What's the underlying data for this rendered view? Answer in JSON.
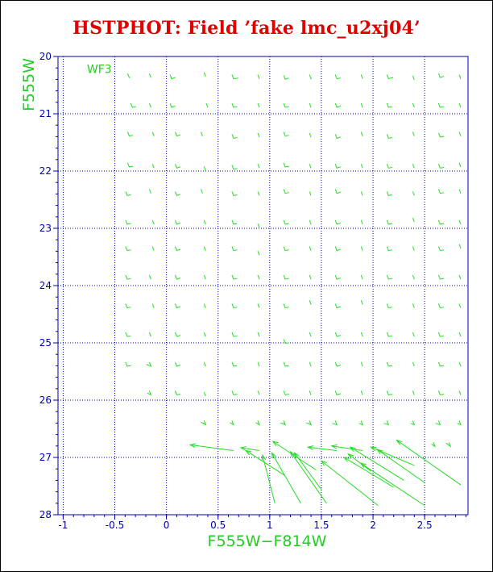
{
  "chart_data": {
    "type": "scatter",
    "title": "HSTPHOT: Field ’fake lmc_u2xj04’",
    "xlabel": "F555W−F814W",
    "ylabel": "F555W",
    "annotation": "WF3",
    "xlim": [
      -1.05,
      2.92
    ],
    "ylim": [
      28,
      20
    ],
    "x_ticks": [
      "-1",
      "-0.5",
      "0",
      "0.5",
      "1",
      "1.5",
      "2",
      "2.5"
    ],
    "x_tick_values": [
      -1,
      -0.5,
      0,
      0.5,
      1,
      1.5,
      2,
      2.5
    ],
    "y_ticks": [
      "20",
      "21",
      "22",
      "23",
      "24",
      "25",
      "26",
      "27",
      "28"
    ],
    "y_tick_values": [
      20,
      21,
      22,
      23,
      24,
      25,
      26,
      27,
      28
    ],
    "grid": true,
    "colors": {
      "title": "#e00000",
      "labels": "#22cc22",
      "axes": "#0000aa",
      "grid": "#0000aa",
      "points": "#22dd22"
    },
    "points": [
      {
        "x": -0.36,
        "y": 20.34,
        "dx": -0.01,
        "dy": 0.04
      },
      {
        "x": -0.15,
        "y": 20.34,
        "dx": -0.02,
        "dy": 0.03
      },
      {
        "x": 0.05,
        "y": 20.36,
        "dx": 0.02,
        "dy": 0.02
      },
      {
        "x": 0.38,
        "y": 20.32,
        "dx": -0.02,
        "dy": 0.03
      },
      {
        "x": 0.65,
        "y": 20.36,
        "dx": 0.03,
        "dy": 0.03
      },
      {
        "x": 0.9,
        "y": 20.36,
        "dx": -0.02,
        "dy": 0.03
      },
      {
        "x": 1.15,
        "y": 20.37,
        "dx": 0.02,
        "dy": 0.02
      },
      {
        "x": 1.4,
        "y": 20.36,
        "dx": -0.01,
        "dy": 0.03
      },
      {
        "x": 1.65,
        "y": 20.36,
        "dx": 0.02,
        "dy": 0.03
      },
      {
        "x": 1.9,
        "y": 20.36,
        "dx": -0.02,
        "dy": 0.02
      },
      {
        "x": 2.15,
        "y": 20.36,
        "dx": 0.03,
        "dy": 0.02
      },
      {
        "x": 2.4,
        "y": 20.38,
        "dx": -0.02,
        "dy": 0.03
      },
      {
        "x": 2.65,
        "y": 20.34,
        "dx": 0.02,
        "dy": 0.02
      },
      {
        "x": 2.85,
        "y": 20.36,
        "dx": -0.02,
        "dy": 0.03
      },
      {
        "x": -0.33,
        "y": 20.86,
        "dx": 0.02,
        "dy": 0.03
      },
      {
        "x": -0.15,
        "y": 20.86,
        "dx": -0.02,
        "dy": 0.03
      },
      {
        "x": 0.05,
        "y": 20.86,
        "dx": 0.02,
        "dy": 0.02
      },
      {
        "x": 0.4,
        "y": 20.86,
        "dx": -0.02,
        "dy": 0.03
      },
      {
        "x": 0.65,
        "y": 20.86,
        "dx": 0.02,
        "dy": 0.03
      },
      {
        "x": 0.9,
        "y": 20.86,
        "dx": -0.02,
        "dy": 0.02
      },
      {
        "x": 1.15,
        "y": 20.86,
        "dx": 0.02,
        "dy": 0.03
      },
      {
        "x": 1.4,
        "y": 20.86,
        "dx": -0.02,
        "dy": 0.03
      },
      {
        "x": 1.65,
        "y": 20.86,
        "dx": 0.02,
        "dy": 0.02
      },
      {
        "x": 1.9,
        "y": 20.86,
        "dx": -0.02,
        "dy": 0.03
      },
      {
        "x": 2.15,
        "y": 20.86,
        "dx": 0.02,
        "dy": 0.03
      },
      {
        "x": 2.4,
        "y": 20.86,
        "dx": -0.02,
        "dy": 0.02
      },
      {
        "x": 2.65,
        "y": 20.86,
        "dx": 0.02,
        "dy": 0.03
      },
      {
        "x": 2.85,
        "y": 20.86,
        "dx": -0.02,
        "dy": 0.03
      },
      {
        "x": -0.36,
        "y": 21.36,
        "dx": 0.02,
        "dy": 0.03
      },
      {
        "x": -0.12,
        "y": 21.36,
        "dx": -0.02,
        "dy": 0.03
      },
      {
        "x": 0.1,
        "y": 21.36,
        "dx": 0.02,
        "dy": 0.02
      },
      {
        "x": 0.35,
        "y": 21.36,
        "dx": -0.02,
        "dy": 0.03
      },
      {
        "x": 0.65,
        "y": 21.4,
        "dx": 0.02,
        "dy": 0.03
      },
      {
        "x": 0.9,
        "y": 21.38,
        "dx": -0.02,
        "dy": 0.02
      },
      {
        "x": 1.15,
        "y": 21.36,
        "dx": 0.02,
        "dy": 0.03
      },
      {
        "x": 1.4,
        "y": 21.38,
        "dx": -0.02,
        "dy": 0.03
      },
      {
        "x": 1.65,
        "y": 21.4,
        "dx": 0.02,
        "dy": 0.02
      },
      {
        "x": 1.9,
        "y": 21.36,
        "dx": -0.02,
        "dy": 0.03
      },
      {
        "x": 2.15,
        "y": 21.4,
        "dx": 0.02,
        "dy": 0.03
      },
      {
        "x": 2.4,
        "y": 21.36,
        "dx": -0.02,
        "dy": 0.02
      },
      {
        "x": 2.65,
        "y": 21.38,
        "dx": 0.02,
        "dy": 0.03
      },
      {
        "x": 2.85,
        "y": 21.36,
        "dx": -0.02,
        "dy": 0.03
      },
      {
        "x": -0.36,
        "y": 21.9,
        "dx": 0.02,
        "dy": 0.03
      },
      {
        "x": -0.12,
        "y": 21.92,
        "dx": -0.02,
        "dy": 0.03
      },
      {
        "x": 0.1,
        "y": 21.92,
        "dx": 0.02,
        "dy": 0.02
      },
      {
        "x": 0.38,
        "y": 21.96,
        "dx": -0.02,
        "dy": 0.03
      },
      {
        "x": 0.65,
        "y": 21.94,
        "dx": 0.02,
        "dy": 0.03
      },
      {
        "x": 0.9,
        "y": 21.92,
        "dx": -0.02,
        "dy": 0.02
      },
      {
        "x": 1.15,
        "y": 21.9,
        "dx": 0.02,
        "dy": 0.03
      },
      {
        "x": 1.4,
        "y": 21.92,
        "dx": -0.02,
        "dy": 0.03
      },
      {
        "x": 1.65,
        "y": 21.92,
        "dx": 0.02,
        "dy": 0.02
      },
      {
        "x": 1.9,
        "y": 21.92,
        "dx": -0.02,
        "dy": 0.03
      },
      {
        "x": 2.15,
        "y": 21.92,
        "dx": 0.02,
        "dy": 0.03
      },
      {
        "x": 2.4,
        "y": 21.92,
        "dx": -0.02,
        "dy": 0.02
      },
      {
        "x": 2.65,
        "y": 21.92,
        "dx": 0.02,
        "dy": 0.03
      },
      {
        "x": 2.85,
        "y": 21.9,
        "dx": -0.02,
        "dy": 0.03
      },
      {
        "x": -0.38,
        "y": 22.4,
        "dx": 0.02,
        "dy": 0.03
      },
      {
        "x": -0.15,
        "y": 22.36,
        "dx": -0.02,
        "dy": 0.03
      },
      {
        "x": 0.1,
        "y": 22.4,
        "dx": 0.02,
        "dy": 0.02
      },
      {
        "x": 0.35,
        "y": 22.36,
        "dx": -0.02,
        "dy": 0.03
      },
      {
        "x": 0.65,
        "y": 22.4,
        "dx": 0.02,
        "dy": 0.03
      },
      {
        "x": 0.9,
        "y": 22.4,
        "dx": -0.02,
        "dy": 0.02
      },
      {
        "x": 1.15,
        "y": 22.36,
        "dx": 0.02,
        "dy": 0.03
      },
      {
        "x": 1.4,
        "y": 22.4,
        "dx": -0.02,
        "dy": 0.03
      },
      {
        "x": 1.65,
        "y": 22.36,
        "dx": 0.02,
        "dy": 0.02
      },
      {
        "x": 1.9,
        "y": 22.4,
        "dx": -0.02,
        "dy": 0.03
      },
      {
        "x": 2.15,
        "y": 22.4,
        "dx": 0.02,
        "dy": 0.03
      },
      {
        "x": 2.4,
        "y": 22.4,
        "dx": -0.02,
        "dy": 0.02
      },
      {
        "x": 2.65,
        "y": 22.36,
        "dx": 0.02,
        "dy": 0.03
      },
      {
        "x": 2.85,
        "y": 22.36,
        "dx": -0.02,
        "dy": 0.03
      },
      {
        "x": -0.38,
        "y": 22.9,
        "dx": 0.02,
        "dy": 0.03
      },
      {
        "x": -0.12,
        "y": 22.9,
        "dx": -0.02,
        "dy": 0.03
      },
      {
        "x": 0.1,
        "y": 22.9,
        "dx": 0.02,
        "dy": 0.02
      },
      {
        "x": 0.38,
        "y": 22.9,
        "dx": -0.02,
        "dy": 0.03
      },
      {
        "x": 0.65,
        "y": 22.9,
        "dx": 0.02,
        "dy": 0.03
      },
      {
        "x": 0.9,
        "y": 22.96,
        "dx": -0.02,
        "dy": 0.02
      },
      {
        "x": 1.15,
        "y": 22.9,
        "dx": 0.02,
        "dy": 0.03
      },
      {
        "x": 1.4,
        "y": 22.9,
        "dx": -0.02,
        "dy": 0.03
      },
      {
        "x": 1.65,
        "y": 22.9,
        "dx": 0.02,
        "dy": 0.02
      },
      {
        "x": 1.9,
        "y": 22.9,
        "dx": -0.02,
        "dy": 0.03
      },
      {
        "x": 2.15,
        "y": 22.9,
        "dx": 0.02,
        "dy": 0.03
      },
      {
        "x": 2.4,
        "y": 22.86,
        "dx": -0.02,
        "dy": 0.02
      },
      {
        "x": 2.65,
        "y": 22.9,
        "dx": 0.02,
        "dy": 0.03
      },
      {
        "x": 2.85,
        "y": 22.9,
        "dx": -0.02,
        "dy": 0.03
      },
      {
        "x": -0.38,
        "y": 23.36,
        "dx": 0.02,
        "dy": 0.03
      },
      {
        "x": -0.12,
        "y": 23.36,
        "dx": -0.02,
        "dy": 0.03
      },
      {
        "x": 0.1,
        "y": 23.36,
        "dx": 0.02,
        "dy": 0.02
      },
      {
        "x": 0.38,
        "y": 23.36,
        "dx": -0.02,
        "dy": 0.03
      },
      {
        "x": 0.65,
        "y": 23.36,
        "dx": 0.02,
        "dy": 0.03
      },
      {
        "x": 0.9,
        "y": 23.44,
        "dx": -0.02,
        "dy": 0.02
      },
      {
        "x": 1.15,
        "y": 23.36,
        "dx": 0.02,
        "dy": 0.03
      },
      {
        "x": 1.4,
        "y": 23.36,
        "dx": -0.02,
        "dy": 0.03
      },
      {
        "x": 1.65,
        "y": 23.36,
        "dx": 0.02,
        "dy": 0.02
      },
      {
        "x": 1.9,
        "y": 23.36,
        "dx": -0.02,
        "dy": 0.03
      },
      {
        "x": 2.15,
        "y": 23.36,
        "dx": 0.02,
        "dy": 0.03
      },
      {
        "x": 2.4,
        "y": 23.36,
        "dx": -0.02,
        "dy": 0.02
      },
      {
        "x": 2.65,
        "y": 23.36,
        "dx": 0.02,
        "dy": 0.03
      },
      {
        "x": 2.85,
        "y": 23.32,
        "dx": -0.02,
        "dy": 0.03
      },
      {
        "x": -0.38,
        "y": 23.86,
        "dx": 0.02,
        "dy": 0.03
      },
      {
        "x": -0.15,
        "y": 23.86,
        "dx": -0.02,
        "dy": 0.03
      },
      {
        "x": 0.1,
        "y": 23.86,
        "dx": 0.02,
        "dy": 0.02
      },
      {
        "x": 0.38,
        "y": 23.86,
        "dx": -0.02,
        "dy": 0.03
      },
      {
        "x": 0.65,
        "y": 23.86,
        "dx": 0.02,
        "dy": 0.03
      },
      {
        "x": 0.9,
        "y": 23.86,
        "dx": -0.02,
        "dy": 0.02
      },
      {
        "x": 1.15,
        "y": 23.86,
        "dx": 0.02,
        "dy": 0.03
      },
      {
        "x": 1.4,
        "y": 23.86,
        "dx": -0.02,
        "dy": 0.03
      },
      {
        "x": 1.65,
        "y": 23.86,
        "dx": 0.02,
        "dy": 0.02
      },
      {
        "x": 1.9,
        "y": 23.86,
        "dx": -0.02,
        "dy": 0.03
      },
      {
        "x": 2.15,
        "y": 23.86,
        "dx": 0.02,
        "dy": 0.03
      },
      {
        "x": 2.4,
        "y": 23.86,
        "dx": -0.02,
        "dy": 0.02
      },
      {
        "x": 2.65,
        "y": 23.86,
        "dx": 0.02,
        "dy": 0.03
      },
      {
        "x": 2.85,
        "y": 23.86,
        "dx": -0.02,
        "dy": 0.03
      },
      {
        "x": -0.38,
        "y": 24.36,
        "dx": 0.02,
        "dy": 0.03
      },
      {
        "x": -0.12,
        "y": 24.36,
        "dx": -0.02,
        "dy": 0.03
      },
      {
        "x": 0.1,
        "y": 24.36,
        "dx": 0.02,
        "dy": 0.02
      },
      {
        "x": 0.38,
        "y": 24.36,
        "dx": -0.02,
        "dy": 0.03
      },
      {
        "x": 0.65,
        "y": 24.36,
        "dx": 0.02,
        "dy": 0.03
      },
      {
        "x": 0.9,
        "y": 24.36,
        "dx": -0.02,
        "dy": 0.02
      },
      {
        "x": 1.15,
        "y": 24.36,
        "dx": 0.02,
        "dy": 0.03
      },
      {
        "x": 1.4,
        "y": 24.3,
        "dx": -0.02,
        "dy": 0.03
      },
      {
        "x": 1.65,
        "y": 24.36,
        "dx": 0.02,
        "dy": 0.02
      },
      {
        "x": 1.9,
        "y": 24.3,
        "dx": -0.02,
        "dy": 0.03
      },
      {
        "x": 2.15,
        "y": 24.36,
        "dx": 0.02,
        "dy": 0.03
      },
      {
        "x": 2.4,
        "y": 24.36,
        "dx": -0.02,
        "dy": 0.02
      },
      {
        "x": 2.65,
        "y": 24.36,
        "dx": 0.02,
        "dy": 0.03
      },
      {
        "x": 2.85,
        "y": 24.36,
        "dx": -0.02,
        "dy": 0.03
      },
      {
        "x": -0.38,
        "y": 24.86,
        "dx": 0.02,
        "dy": 0.03
      },
      {
        "x": -0.15,
        "y": 24.86,
        "dx": -0.02,
        "dy": 0.03
      },
      {
        "x": 0.1,
        "y": 24.86,
        "dx": 0.02,
        "dy": 0.02
      },
      {
        "x": 0.38,
        "y": 24.86,
        "dx": -0.02,
        "dy": 0.03
      },
      {
        "x": 0.65,
        "y": 24.86,
        "dx": 0.02,
        "dy": 0.03
      },
      {
        "x": 0.9,
        "y": 24.86,
        "dx": -0.02,
        "dy": 0.02
      },
      {
        "x": 1.15,
        "y": 24.98,
        "dx": 0.02,
        "dy": 0.03
      },
      {
        "x": 1.4,
        "y": 24.86,
        "dx": -0.02,
        "dy": 0.03
      },
      {
        "x": 1.65,
        "y": 24.86,
        "dx": 0.02,
        "dy": 0.02
      },
      {
        "x": 1.9,
        "y": 24.86,
        "dx": -0.02,
        "dy": 0.03
      },
      {
        "x": 2.15,
        "y": 24.86,
        "dx": 0.02,
        "dy": 0.03
      },
      {
        "x": 2.4,
        "y": 24.86,
        "dx": -0.02,
        "dy": 0.02
      },
      {
        "x": 2.65,
        "y": 24.86,
        "dx": 0.02,
        "dy": 0.03
      },
      {
        "x": 2.85,
        "y": 24.86,
        "dx": -0.02,
        "dy": 0.03
      },
      {
        "x": -0.38,
        "y": 25.38,
        "dx": 0.02,
        "dy": 0.03
      },
      {
        "x": -0.15,
        "y": 25.38,
        "dx": -0.06,
        "dy": 0.01
      },
      {
        "x": 0.1,
        "y": 25.38,
        "dx": 0.02,
        "dy": 0.02
      },
      {
        "x": 0.38,
        "y": 25.38,
        "dx": -0.02,
        "dy": 0.03
      },
      {
        "x": 0.65,
        "y": 25.38,
        "dx": 0.02,
        "dy": 0.03
      },
      {
        "x": 0.9,
        "y": 25.38,
        "dx": -0.02,
        "dy": 0.02
      },
      {
        "x": 1.15,
        "y": 25.38,
        "dx": 0.02,
        "dy": 0.03
      },
      {
        "x": 1.4,
        "y": 25.38,
        "dx": -0.02,
        "dy": 0.03
      },
      {
        "x": 1.65,
        "y": 25.38,
        "dx": 0.02,
        "dy": 0.02
      },
      {
        "x": 1.9,
        "y": 25.38,
        "dx": -0.02,
        "dy": 0.03
      },
      {
        "x": 2.15,
        "y": 25.38,
        "dx": 0.02,
        "dy": 0.03
      },
      {
        "x": 2.4,
        "y": 25.38,
        "dx": -0.02,
        "dy": 0.02
      },
      {
        "x": 2.65,
        "y": 25.38,
        "dx": 0.02,
        "dy": 0.03
      },
      {
        "x": 2.85,
        "y": 25.38,
        "dx": -0.02,
        "dy": 0.03
      },
      {
        "x": -0.15,
        "y": 25.88,
        "dx": -0.05,
        "dy": 0.01
      },
      {
        "x": 0.1,
        "y": 25.88,
        "dx": 0.02,
        "dy": 0.03
      },
      {
        "x": 0.38,
        "y": 25.9,
        "dx": -0.02,
        "dy": 0.03
      },
      {
        "x": 0.65,
        "y": 25.88,
        "dx": 0.02,
        "dy": 0.03
      },
      {
        "x": 0.9,
        "y": 25.88,
        "dx": -0.02,
        "dy": 0.02
      },
      {
        "x": 1.15,
        "y": 25.88,
        "dx": 0.02,
        "dy": 0.03
      },
      {
        "x": 1.4,
        "y": 25.88,
        "dx": -0.02,
        "dy": 0.03
      },
      {
        "x": 1.65,
        "y": 25.88,
        "dx": 0.02,
        "dy": 0.02
      },
      {
        "x": 1.9,
        "y": 25.88,
        "dx": -0.02,
        "dy": 0.03
      },
      {
        "x": 2.15,
        "y": 25.88,
        "dx": 0.02,
        "dy": 0.03
      },
      {
        "x": 2.4,
        "y": 25.88,
        "dx": -0.02,
        "dy": 0.02
      },
      {
        "x": 2.65,
        "y": 25.88,
        "dx": 0.02,
        "dy": 0.03
      },
      {
        "x": 2.85,
        "y": 25.88,
        "dx": -0.02,
        "dy": 0.03
      },
      {
        "x": 0.38,
        "y": 26.4,
        "dx": -0.06,
        "dy": 0.0
      },
      {
        "x": 0.65,
        "y": 26.4,
        "dx": -0.05,
        "dy": 0.01
      },
      {
        "x": 0.9,
        "y": 26.4,
        "dx": -0.05,
        "dy": 0.01
      },
      {
        "x": 1.15,
        "y": 26.4,
        "dx": -0.06,
        "dy": 0.01
      },
      {
        "x": 1.4,
        "y": 26.4,
        "dx": -0.06,
        "dy": 0.01
      },
      {
        "x": 1.65,
        "y": 26.4,
        "dx": -0.06,
        "dy": 0.02
      },
      {
        "x": 1.9,
        "y": 26.4,
        "dx": -0.05,
        "dy": 0.02
      },
      {
        "x": 2.15,
        "y": 26.4,
        "dx": -0.06,
        "dy": 0.02
      },
      {
        "x": 2.4,
        "y": 26.4,
        "dx": -0.05,
        "dy": 0.02
      },
      {
        "x": 2.65,
        "y": 26.4,
        "dx": -0.06,
        "dy": 0.02
      },
      {
        "x": 2.85,
        "y": 26.4,
        "dx": -0.05,
        "dy": 0.02
      },
      {
        "x": 0.65,
        "y": 26.88,
        "dx": -0.42,
        "dy": -0.1
      },
      {
        "x": 0.9,
        "y": 26.88,
        "dx": -0.18,
        "dy": -0.05
      },
      {
        "x": 1.15,
        "y": 27.32,
        "dx": -0.38,
        "dy": -0.44
      },
      {
        "x": 1.05,
        "y": 27.8,
        "dx": -0.12,
        "dy": -0.84
      },
      {
        "x": 1.3,
        "y": 27.8,
        "dx": -0.28,
        "dy": -0.88
      },
      {
        "x": 1.55,
        "y": 27.8,
        "dx": -0.35,
        "dy": -0.9
      },
      {
        "x": 1.5,
        "y": 27.56,
        "dx": -0.26,
        "dy": -0.64
      },
      {
        "x": 1.45,
        "y": 27.22,
        "dx": -0.42,
        "dy": -0.5
      },
      {
        "x": 1.65,
        "y": 26.88,
        "dx": -0.28,
        "dy": -0.06
      },
      {
        "x": 1.9,
        "y": 26.88,
        "dx": -0.3,
        "dy": -0.08
      },
      {
        "x": 2.05,
        "y": 27.84,
        "dx": -0.55,
        "dy": -0.78
      },
      {
        "x": 2.2,
        "y": 27.52,
        "dx": -0.48,
        "dy": -0.52
      },
      {
        "x": 1.98,
        "y": 27.24,
        "dx": -0.22,
        "dy": -0.3
      },
      {
        "x": 2.3,
        "y": 27.4,
        "dx": -0.52,
        "dy": -0.58
      },
      {
        "x": 2.5,
        "y": 27.84,
        "dx": -0.62,
        "dy": -0.74
      },
      {
        "x": 2.5,
        "y": 27.44,
        "dx": -0.46,
        "dy": -0.58
      },
      {
        "x": 2.4,
        "y": 27.14,
        "dx": -0.42,
        "dy": -0.32
      },
      {
        "x": 2.6,
        "y": 26.78,
        "dx": -0.05,
        "dy": 0.0
      },
      {
        "x": 2.75,
        "y": 26.78,
        "dx": -0.06,
        "dy": -0.02
      },
      {
        "x": 2.85,
        "y": 27.48,
        "dx": -0.62,
        "dy": -0.78
      }
    ]
  }
}
